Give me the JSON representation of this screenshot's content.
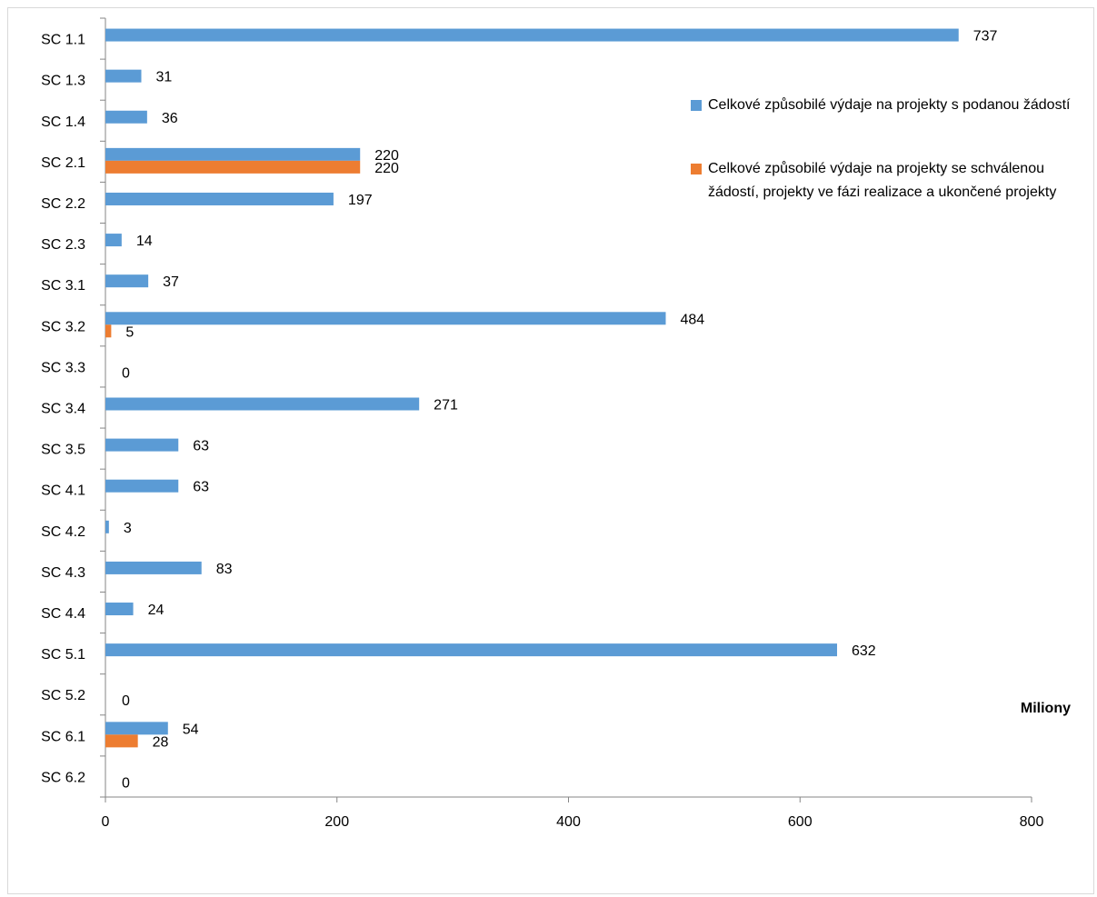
{
  "chart_data": {
    "type": "bar",
    "orientation": "horizontal",
    "categories": [
      "SC 1.1",
      "SC 1.3",
      "SC 1.4",
      "SC 2.1",
      "SC 2.2",
      "SC 2.3",
      "SC 3.1",
      "SC 3.2",
      "SC 3.3",
      "SC 3.4",
      "SC 3.5",
      "SC 4.1",
      "SC 4.2",
      "SC 4.3",
      "SC 4.4",
      "SC 5.1",
      "SC 5.2",
      "SC 6.1",
      "SC 6.2"
    ],
    "series": [
      {
        "name": "Celkové způsobilé výdaje na projekty s podanou žádostí",
        "color": "#5b9bd5",
        "values": [
          737,
          31,
          36,
          220,
          197,
          14,
          37,
          484,
          0,
          271,
          63,
          63,
          3,
          83,
          24,
          632,
          0,
          54,
          0
        ]
      },
      {
        "name": "Celkové způsobilé výdaje na projekty se schválenou žádostí, projekty ve fázi realizace a ukončené projekty",
        "color": "#ed7d31",
        "values": [
          null,
          null,
          null,
          220,
          null,
          null,
          null,
          5,
          null,
          null,
          null,
          null,
          null,
          null,
          null,
          null,
          null,
          28,
          null
        ]
      }
    ],
    "xlim": [
      0,
      800
    ],
    "xticks": [
      0,
      200,
      400,
      600,
      800
    ],
    "xlabel": "Miliony",
    "ylabel": "",
    "title": "",
    "grid": false,
    "legend_position": "right"
  }
}
